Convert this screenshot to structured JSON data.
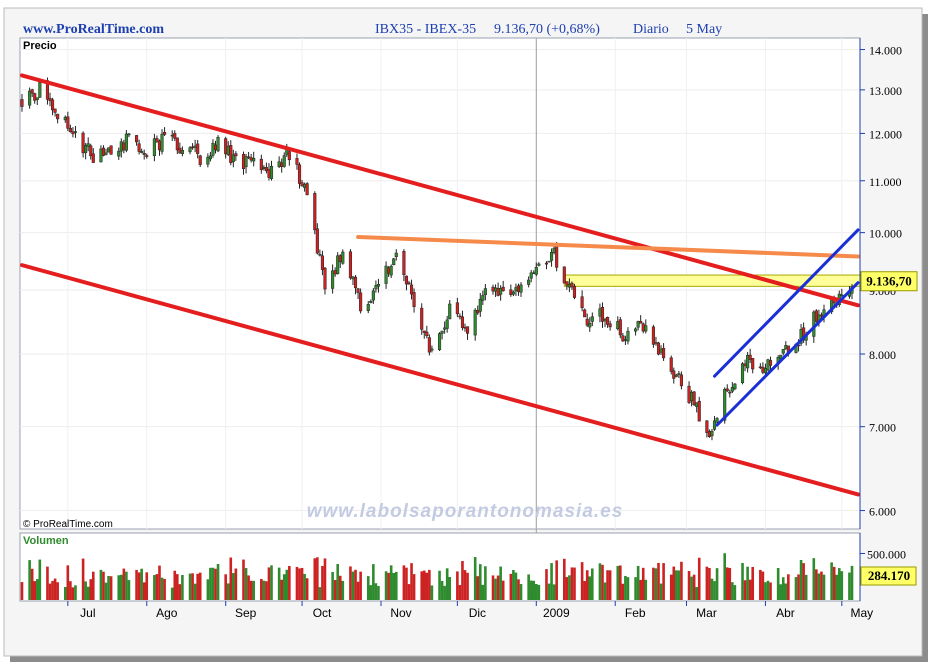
{
  "header": {
    "site": "www.ProRealTime.com",
    "symbol": "IBX35 - IBEX-35",
    "quote": "9.136,70 (+0,68%)",
    "period": "Diario",
    "date": "5 May"
  },
  "price_panel": {
    "label": "Precio",
    "copyright": "© ProRealTime.com",
    "watermark": "www.labolsaporantonomasia.es",
    "last_price_tag": "9.136,70",
    "y_ticks": [
      "14.000",
      "13.000",
      "12.000",
      "11.000",
      "10.000",
      "9.000",
      "8.000",
      "7.000",
      "6.000"
    ]
  },
  "volume_panel": {
    "label": "Volumen",
    "y_tick": "500.000",
    "last_volume_tag": "284.170"
  },
  "x_axis": {
    "months": [
      "Jul",
      "Ago",
      "Sep",
      "Oct",
      "Nov",
      "Dic",
      "2009",
      "Feb",
      "Mar",
      "Abr",
      "May"
    ]
  },
  "colors": {
    "bull": "#2e8b2e",
    "bear": "#cc2222",
    "channel_down": "#e41e1e",
    "resistance": "#f58a4a",
    "channel_up": "#1a2fd6",
    "highlight": "#ffff99",
    "axis": "#1d3fb0"
  },
  "chart_data": {
    "type": "candlestick",
    "scale": "log",
    "ylim": [
      5800,
      14300
    ],
    "x_start": "2008-06-13",
    "x_end": "2009-05-05",
    "last_close": 9136.7,
    "change_pct": 0.68,
    "price_path": [
      [
        "2008-06-13",
        12800
      ],
      [
        "2008-06-20",
        13000
      ],
      [
        "2008-06-27",
        12500
      ],
      [
        "2008-07-04",
        11900
      ],
      [
        "2008-07-11",
        11500
      ],
      [
        "2008-07-18",
        11700
      ],
      [
        "2008-07-25",
        11850
      ],
      [
        "2008-08-01",
        11600
      ],
      [
        "2008-08-08",
        11900
      ],
      [
        "2008-08-15",
        11700
      ],
      [
        "2008-08-22",
        11500
      ],
      [
        "2008-08-29",
        11800
      ],
      [
        "2008-09-05",
        11400
      ],
      [
        "2008-09-12",
        11300
      ],
      [
        "2008-09-19",
        11200
      ],
      [
        "2008-09-26",
        11600
      ],
      [
        "2008-10-03",
        10700
      ],
      [
        "2008-10-10",
        9000
      ],
      [
        "2008-10-17",
        9700
      ],
      [
        "2008-10-24",
        8700
      ],
      [
        "2008-10-31",
        9100
      ],
      [
        "2008-11-07",
        9600
      ],
      [
        "2008-11-14",
        8800
      ],
      [
        "2008-11-21",
        8000
      ],
      [
        "2008-11-28",
        8700
      ],
      [
        "2008-12-05",
        8300
      ],
      [
        "2008-12-12",
        8900
      ],
      [
        "2008-12-19",
        9000
      ],
      [
        "2008-12-31",
        9200
      ],
      [
        "2009-01-07",
        9700
      ],
      [
        "2009-01-14",
        9000
      ],
      [
        "2009-01-21",
        8500
      ],
      [
        "2009-01-28",
        8600
      ],
      [
        "2009-02-04",
        8300
      ],
      [
        "2009-02-11",
        8500
      ],
      [
        "2009-02-18",
        8000
      ],
      [
        "2009-02-25",
        7700
      ],
      [
        "2009-03-04",
        7300
      ],
      [
        "2009-03-09",
        6850
      ],
      [
        "2009-03-16",
        7400
      ],
      [
        "2009-03-23",
        7900
      ],
      [
        "2009-03-30",
        7800
      ],
      [
        "2009-04-06",
        8000
      ],
      [
        "2009-04-14",
        8200
      ],
      [
        "2009-04-21",
        8600
      ],
      [
        "2009-04-28",
        8800
      ],
      [
        "2009-05-05",
        9136.7
      ]
    ],
    "trendlines": [
      {
        "name": "down-channel-upper",
        "color": "channel_down",
        "from": [
          "2008-06-13",
          13350
        ],
        "to": [
          "2009-05-05",
          8750
        ]
      },
      {
        "name": "down-channel-lower",
        "color": "channel_down",
        "from": [
          "2008-06-13",
          9420
        ],
        "to": [
          "2009-05-05",
          6180
        ]
      },
      {
        "name": "resistance",
        "color": "resistance",
        "from": [
          "2008-10-23",
          9920
        ],
        "to": [
          "2009-05-05",
          9570
        ]
      },
      {
        "name": "up-channel-upper",
        "color": "channel_up",
        "from": [
          "2009-03-12",
          7680
        ],
        "to": [
          "2009-05-05",
          10050
        ]
      },
      {
        "name": "up-channel-lower",
        "color": "channel_up",
        "from": [
          "2009-03-13",
          7020
        ],
        "to": [
          "2009-05-05",
          9120
        ]
      }
    ],
    "volume_ticks": [
      500000
    ],
    "volume_ylim": [
      0,
      720000
    ],
    "last_volume": 284170
  }
}
